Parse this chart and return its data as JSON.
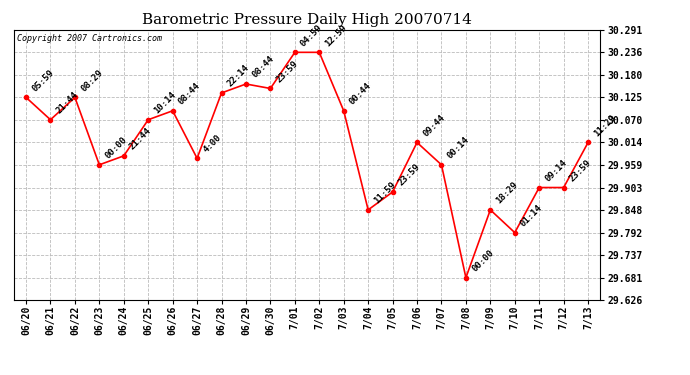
{
  "title": "Barometric Pressure Daily High 20070714",
  "copyright": "Copyright 2007 Cartronics.com",
  "x_labels": [
    "06/20",
    "06/21",
    "06/22",
    "06/23",
    "06/24",
    "06/25",
    "06/26",
    "06/27",
    "06/28",
    "06/29",
    "06/30",
    "7/01",
    "7/02",
    "7/03",
    "7/04",
    "7/05",
    "7/06",
    "7/07",
    "7/08",
    "7/09",
    "7/10",
    "7/11",
    "7/12",
    "7/13"
  ],
  "point_labels": [
    "05:59",
    "21:44",
    "08:29",
    "00:00",
    "21:44",
    "10:14",
    "08:44",
    "4:00",
    "22:14",
    "08:44",
    "23:59",
    "04:59",
    "12:59",
    "00:44",
    "11:59",
    "23:59",
    "09:44",
    "00:14",
    "00:00",
    "18:29",
    "01:14",
    "09:14",
    "23:59",
    "11:29"
  ],
  "y_values": [
    30.125,
    30.07,
    30.125,
    29.959,
    29.981,
    30.07,
    30.092,
    29.975,
    30.136,
    30.158,
    30.147,
    30.236,
    30.236,
    30.092,
    29.848,
    29.892,
    30.014,
    29.959,
    29.681,
    29.848,
    29.792,
    29.903,
    29.903,
    30.014
  ],
  "ylim_min": 29.626,
  "ylim_max": 30.291,
  "yticks": [
    30.291,
    30.236,
    30.18,
    30.125,
    30.07,
    30.014,
    29.959,
    29.903,
    29.848,
    29.792,
    29.737,
    29.681,
    29.626
  ],
  "line_color": "red",
  "marker_color": "red",
  "bg_color": "white",
  "grid_color": "#bbbbbb",
  "title_fontsize": 11,
  "point_label_fontsize": 6.5,
  "tick_fontsize": 7,
  "copyright_fontsize": 6
}
